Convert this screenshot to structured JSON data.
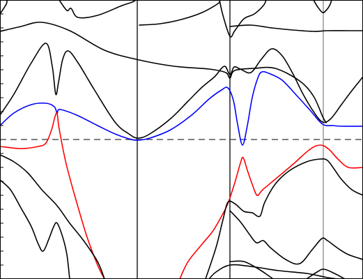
{
  "chart_data": {
    "type": "line",
    "title": "",
    "xlabel": "",
    "ylabel": "",
    "xlim": [
      0,
      521
    ],
    "ylim": [
      0,
      400
    ],
    "grid": false,
    "legend": "none",
    "fermi_level": 200,
    "high_symmetry_lines": [
      {
        "x": 197,
        "color": "#000000"
      },
      {
        "x": 330,
        "color": "#000000"
      },
      {
        "x": 464,
        "color": "#888888"
      }
    ],
    "left_ticks": [
      20,
      40,
      60,
      80,
      100,
      120,
      140,
      160,
      180,
      220,
      240,
      260,
      280,
      300,
      320,
      340,
      360,
      380
    ],
    "series": [
      {
        "color": "#000000",
        "points": [
          [
            0,
            20
          ],
          [
            9,
            6
          ],
          [
            10,
            0
          ]
        ]
      },
      {
        "color": "#000000",
        "points": [
          [
            85,
            0
          ],
          [
            96,
            15
          ],
          [
            102,
            12
          ],
          [
            112,
            25
          ],
          [
            140,
            22
          ],
          [
            175,
            8
          ],
          [
            190,
            3
          ],
          [
            195,
            0
          ]
        ]
      },
      {
        "color": "#000000",
        "points": [
          [
            0,
            45
          ],
          [
            30,
            38
          ],
          [
            60,
            32
          ],
          [
            100,
            44
          ],
          [
            150,
            72
          ],
          [
            200,
            86
          ],
          [
            250,
            95
          ],
          [
            300,
            99
          ],
          [
            324,
            104
          ],
          [
            330,
            112
          ],
          [
            337,
            101
          ],
          [
            365,
            98
          ],
          [
            395,
            98
          ],
          [
            430,
            116
          ],
          [
            450,
            138
          ],
          [
            463,
            167
          ],
          [
            468,
            176
          ]
        ]
      },
      {
        "color": "#000000",
        "points": [
          [
            200,
            36
          ],
          [
            230,
            34
          ],
          [
            260,
            28
          ],
          [
            290,
            18
          ],
          [
            313,
            5
          ],
          [
            315,
            0
          ]
        ]
      },
      {
        "color": "#000000",
        "points": [
          [
            315,
            0
          ],
          [
            320,
            22
          ],
          [
            330,
            52
          ],
          [
            337,
            44
          ],
          [
            350,
            27
          ],
          [
            365,
            20
          ],
          [
            378,
            8
          ],
          [
            382,
            0
          ]
        ]
      },
      {
        "color": "#000000",
        "points": [
          [
            330,
            38
          ],
          [
            360,
            36
          ],
          [
            390,
            40
          ],
          [
            420,
            43
          ],
          [
            450,
            45
          ],
          [
            470,
            44
          ],
          [
            500,
            44
          ],
          [
            521,
            44
          ]
        ]
      },
      {
        "color": "#000000",
        "points": [
          [
            450,
            0
          ],
          [
            456,
            10
          ],
          [
            463,
            18
          ],
          [
            468,
            15
          ],
          [
            473,
            8
          ],
          [
            476,
            0
          ]
        ]
      },
      {
        "color": "#000000",
        "points": [
          [
            0,
            165
          ],
          [
            20,
            135
          ],
          [
            45,
            90
          ],
          [
            66,
            62
          ],
          [
            75,
            95
          ],
          [
            80,
            135
          ],
          [
            84,
            118
          ],
          [
            90,
            85
          ],
          [
            98,
            73
          ],
          [
            112,
            90
          ],
          [
            135,
            128
          ],
          [
            165,
            175
          ],
          [
            185,
            192
          ],
          [
            198,
            198
          ],
          [
            215,
            192
          ],
          [
            245,
            170
          ],
          [
            270,
            145
          ],
          [
            290,
            125
          ],
          [
            308,
            110
          ],
          [
            322,
            95
          ],
          [
            330,
            107
          ],
          [
            336,
            96
          ],
          [
            345,
            99
          ],
          [
            360,
            104
          ],
          [
            375,
            85
          ],
          [
            390,
            70
          ],
          [
            405,
            80
          ],
          [
            420,
            105
          ],
          [
            435,
            135
          ],
          [
            450,
            160
          ],
          [
            463,
            175
          ],
          [
            475,
            170
          ],
          [
            490,
            150
          ],
          [
            505,
            130
          ],
          [
            521,
            110
          ]
        ]
      },
      {
        "color": "#0000ff",
        "points": [
          [
            0,
            180
          ],
          [
            20,
            162
          ],
          [
            45,
            150
          ],
          [
            66,
            148
          ],
          [
            78,
            153
          ],
          [
            82,
            162
          ],
          [
            86,
            157
          ],
          [
            110,
            165
          ],
          [
            140,
            180
          ],
          [
            165,
            192
          ],
          [
            185,
            199
          ],
          [
            197,
            201
          ],
          [
            215,
            198
          ],
          [
            245,
            186
          ],
          [
            275,
            165
          ],
          [
            300,
            142
          ],
          [
            318,
            129
          ],
          [
            327,
            126
          ],
          [
            335,
            144
          ],
          [
            341,
            178
          ],
          [
            348,
            208
          ],
          [
            355,
            180
          ],
          [
            362,
            140
          ],
          [
            370,
            112
          ],
          [
            376,
            103
          ],
          [
            388,
            106
          ],
          [
            405,
            115
          ],
          [
            425,
            136
          ],
          [
            445,
            158
          ],
          [
            463,
            178
          ],
          [
            478,
            180
          ],
          [
            490,
            181
          ],
          [
            521,
            181
          ]
        ]
      },
      {
        "color": "#ff0000",
        "points": [
          [
            0,
            210
          ],
          [
            30,
            213
          ],
          [
            55,
            210
          ],
          [
            66,
            205
          ],
          [
            74,
            186
          ],
          [
            79,
            167
          ],
          [
            82,
            163
          ],
          [
            85,
            185
          ],
          [
            95,
            235
          ],
          [
            110,
            290
          ],
          [
            125,
            340
          ],
          [
            140,
            380
          ],
          [
            150,
            400
          ]
        ]
      },
      {
        "color": "#ff0000",
        "points": [
          [
            258,
            400
          ],
          [
            270,
            375
          ],
          [
            290,
            350
          ],
          [
            305,
            332
          ],
          [
            318,
            310
          ],
          [
            327,
            292
          ],
          [
            337,
            262
          ],
          [
            345,
            234
          ],
          [
            349,
            226
          ],
          [
            355,
            244
          ],
          [
            362,
            264
          ],
          [
            369,
            280
          ],
          [
            377,
            272
          ],
          [
            395,
            257
          ],
          [
            420,
            236
          ],
          [
            445,
            214
          ],
          [
            460,
            208
          ],
          [
            472,
            214
          ],
          [
            485,
            228
          ],
          [
            500,
            240
          ],
          [
            521,
            240
          ]
        ]
      },
      {
        "color": "#000000",
        "points": [
          [
            0,
            222
          ],
          [
            20,
            232
          ],
          [
            40,
            248
          ],
          [
            60,
            272
          ],
          [
            82,
            295
          ],
          [
            100,
            320
          ],
          [
            120,
            345
          ],
          [
            140,
            375
          ],
          [
            150,
            400
          ]
        ]
      },
      {
        "color": "#000000",
        "points": [
          [
            0,
            258
          ],
          [
            15,
            272
          ],
          [
            30,
            298
          ],
          [
            45,
            325
          ],
          [
            55,
            350
          ],
          [
            62,
            360
          ],
          [
            70,
            343
          ],
          [
            77,
            325
          ],
          [
            82,
            320
          ],
          [
            90,
            340
          ],
          [
            96,
            365
          ],
          [
            100,
            400
          ]
        ]
      },
      {
        "color": "#000000",
        "points": [
          [
            295,
            400
          ],
          [
            310,
            355
          ],
          [
            320,
            315
          ],
          [
            327,
            290
          ],
          [
            337,
            292
          ],
          [
            350,
            303
          ],
          [
            362,
            305
          ],
          [
            373,
            310
          ],
          [
            380,
            290
          ],
          [
            395,
            264
          ],
          [
            415,
            245
          ],
          [
            440,
            232
          ],
          [
            460,
            228
          ],
          [
            470,
            230
          ],
          [
            480,
            243
          ],
          [
            490,
            257
          ],
          [
            505,
            272
          ],
          [
            521,
            280
          ]
        ]
      },
      {
        "color": "#000000",
        "points": [
          [
            330,
            302
          ],
          [
            345,
            318
          ],
          [
            358,
            336
          ],
          [
            368,
            348
          ],
          [
            378,
            345
          ],
          [
            388,
            355
          ],
          [
            410,
            372
          ],
          [
            430,
            378
          ],
          [
            448,
            358
          ],
          [
            462,
            342
          ],
          [
            470,
            345
          ],
          [
            485,
            356
          ],
          [
            500,
            365
          ],
          [
            521,
            372
          ]
        ]
      },
      {
        "color": "#000000",
        "points": [
          [
            300,
            400
          ],
          [
            310,
            390
          ],
          [
            330,
            380
          ],
          [
            360,
            382
          ],
          [
            400,
            388
          ],
          [
            440,
            392
          ],
          [
            470,
            398
          ],
          [
            485,
            400
          ]
        ]
      },
      {
        "color": "#000000",
        "points": [
          [
            330,
            375
          ],
          [
            350,
            375
          ],
          [
            370,
            385
          ],
          [
            385,
            395
          ],
          [
            392,
            400
          ]
        ]
      },
      {
        "color": "#000000",
        "points": [
          [
            440,
            400
          ],
          [
            455,
            390
          ],
          [
            465,
            386
          ],
          [
            480,
            392
          ],
          [
            495,
            400
          ]
        ]
      }
    ]
  }
}
